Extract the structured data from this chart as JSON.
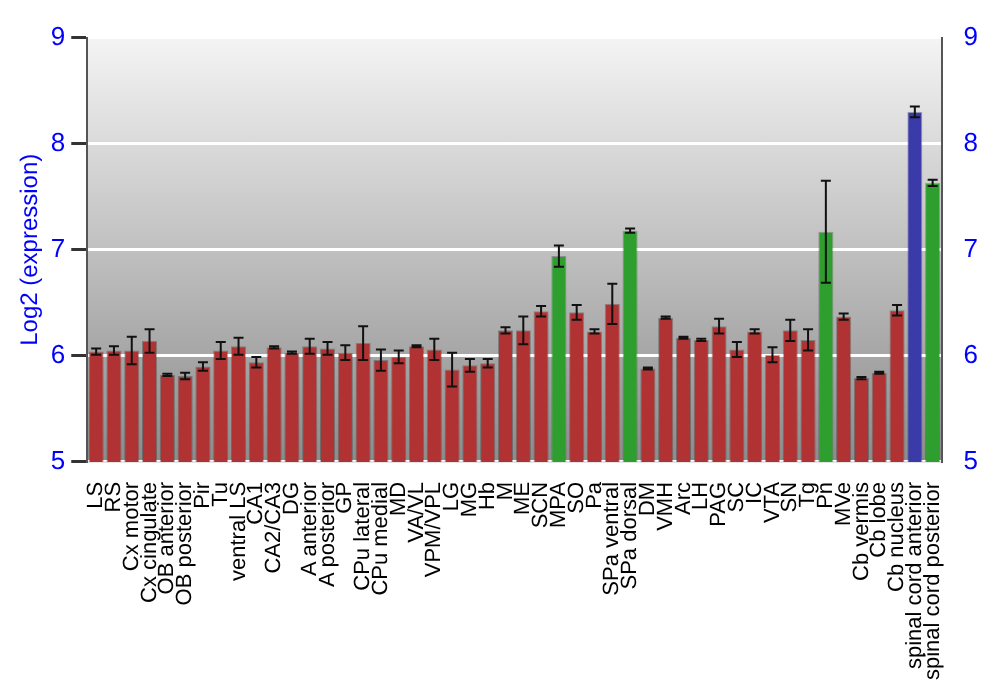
{
  "chart_data": {
    "type": "bar",
    "ylabel": "Log2 (expression)",
    "categories": [
      "LS",
      "RS",
      "Cx motor",
      "Cx cingulate",
      "OB anterior",
      "OB posterior",
      "Pir",
      "Tu",
      "ventral LS",
      "CA1",
      "CA2/CA3",
      "DG",
      "A anterior",
      "A posterior",
      "GP",
      "CPu lateral",
      "CPu medial",
      "MD",
      "VA/VL",
      "VPM/VPL",
      "LG",
      "MG",
      "Hb",
      "M",
      "ME",
      "SCN",
      "MPA",
      "SO",
      "Pa",
      "SPa ventral",
      "SPa dorsal",
      "DM",
      "VMH",
      "Arc",
      "LH",
      "PAG",
      "SC",
      "IC",
      "VTA",
      "SN",
      "Tg",
      "Pn",
      "MVe",
      "Cb vermis",
      "Cb lobe",
      "Cb nucleus",
      "spinal cord anterior",
      "spinal cord posterior"
    ],
    "values": [
      6.04,
      6.05,
      6.05,
      6.14,
      5.82,
      5.81,
      5.9,
      6.05,
      6.09,
      5.94,
      6.08,
      6.03,
      6.09,
      6.07,
      6.03,
      6.12,
      5.96,
      5.99,
      6.09,
      6.06,
      5.87,
      5.91,
      5.93,
      6.24,
      6.24,
      6.42,
      6.94,
      6.41,
      6.23,
      6.49,
      7.18,
      5.88,
      6.36,
      6.17,
      6.15,
      6.28,
      6.06,
      6.23,
      6.01,
      6.24,
      6.15,
      7.17,
      6.37,
      5.79,
      5.84,
      6.43,
      8.3,
      7.63
    ],
    "errors": [
      0.03,
      0.04,
      0.13,
      0.11,
      0.01,
      0.03,
      0.04,
      0.08,
      0.08,
      0.05,
      0.01,
      0.01,
      0.07,
      0.06,
      0.07,
      0.16,
      0.1,
      0.06,
      0.01,
      0.1,
      0.16,
      0.06,
      0.04,
      0.03,
      0.13,
      0.05,
      0.1,
      0.07,
      0.02,
      0.19,
      0.02,
      0.01,
      0.01,
      0.01,
      0.01,
      0.07,
      0.07,
      0.02,
      0.07,
      0.1,
      0.1,
      0.48,
      0.03,
      0.01,
      0.01,
      0.05,
      0.05,
      0.03
    ],
    "colors": [
      "#b03232",
      "#b03232",
      "#b03232",
      "#b03232",
      "#b03232",
      "#b03232",
      "#b03232",
      "#b03232",
      "#b03232",
      "#b03232",
      "#b03232",
      "#b03232",
      "#b03232",
      "#b03232",
      "#b03232",
      "#b03232",
      "#b03232",
      "#b03232",
      "#b03232",
      "#b03232",
      "#b03232",
      "#b03232",
      "#b03232",
      "#b03232",
      "#b03232",
      "#b03232",
      "#2e9e2e",
      "#b03232",
      "#b03232",
      "#b03232",
      "#2e9e2e",
      "#b03232",
      "#b03232",
      "#b03232",
      "#b03232",
      "#b03232",
      "#b03232",
      "#b03232",
      "#b03232",
      "#b03232",
      "#b03232",
      "#2e9e2e",
      "#b03232",
      "#b03232",
      "#b03232",
      "#b03232",
      "#3a3aa8",
      "#2e9e2e"
    ],
    "ylim": [
      5,
      9
    ],
    "yticks": [
      5,
      6,
      7,
      8,
      9
    ],
    "y2lim": [
      5,
      9
    ],
    "y2ticks": [
      5,
      6,
      7,
      8,
      9
    ],
    "grid": "y"
  }
}
